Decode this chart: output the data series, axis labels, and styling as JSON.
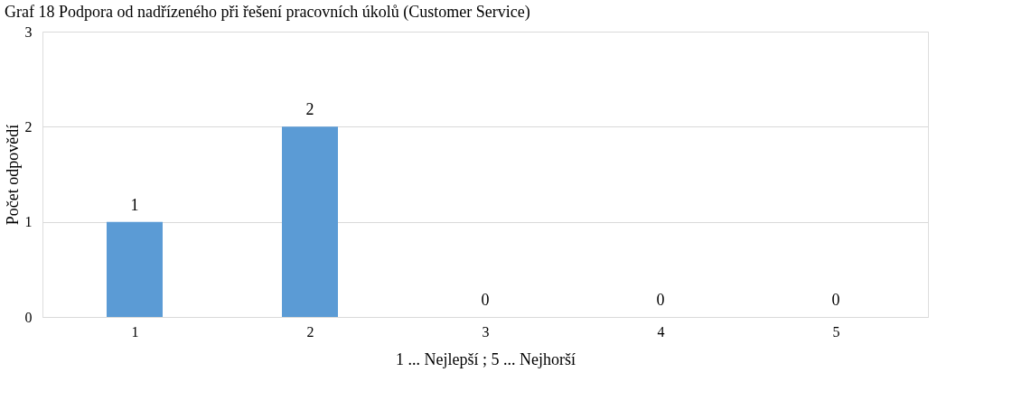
{
  "chart_data": {
    "type": "bar",
    "title": "Graf 18 Podpora od nadřízeného při řešení pracovních úkolů (Customer Service)",
    "xlabel": "1 ... Nejlepší ; 5 ... Nejhorší",
    "ylabel": "Počet odpovědí",
    "categories": [
      "1",
      "2",
      "3",
      "4",
      "5"
    ],
    "values": [
      1,
      2,
      0,
      0,
      0
    ],
    "color": "#5b9bd5",
    "ylim": [
      0,
      3
    ],
    "yticks": [
      0,
      1,
      2,
      3
    ],
    "grid": "y",
    "data_labels": true
  }
}
